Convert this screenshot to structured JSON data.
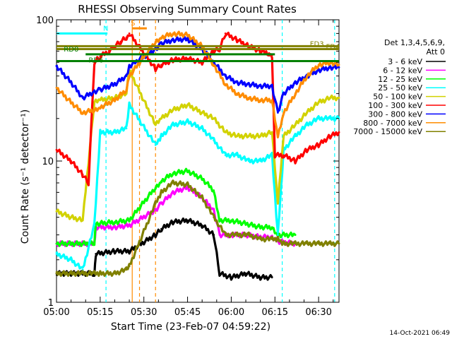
{
  "chart_data": {
    "type": "line",
    "title": "RHESSI Observing Summary Count Rates",
    "xlabel": "Start Time (23-Feb-07 04:59:22)",
    "ylabel": "Count Rate (s⁻¹ detector⁻¹)",
    "x_unit": "minutes after 05:00",
    "xlim": [
      0,
      97
    ],
    "ylim": [
      1,
      100
    ],
    "yscale": "log",
    "x_ticks": [
      {
        "value": 0,
        "label": "05:00"
      },
      {
        "value": 15,
        "label": "05:15"
      },
      {
        "value": 30,
        "label": "05:30"
      },
      {
        "value": 45,
        "label": "05:45"
      },
      {
        "value": 60,
        "label": "06:00"
      },
      {
        "value": 75,
        "label": "06:15"
      },
      {
        "value": 90,
        "label": "06:30"
      }
    ],
    "y_ticks": [
      {
        "value": 1,
        "label": "1"
      },
      {
        "value": 10,
        "label": "10"
      },
      {
        "value": 100,
        "label": "100"
      }
    ],
    "legend_header": [
      "Det 1,3,4,5,6,9,",
      "Att 0"
    ],
    "legend_position": "right",
    "footer_date": "14-Oct-2021 06:49",
    "series": [
      {
        "name": "3 - 6 keV",
        "color": "#000000",
        "x": [
          0,
          13,
          13.5,
          20,
          25,
          34,
          36,
          40,
          45,
          50,
          54,
          56,
          60,
          65,
          70,
          74
        ],
        "y": [
          1.6,
          1.6,
          2.2,
          2.3,
          2.3,
          3.0,
          3.3,
          3.7,
          3.8,
          3.5,
          3.0,
          1.6,
          1.5,
          1.6,
          1.5,
          1.5
        ]
      },
      {
        "name": "6 - 12 keV",
        "color": "#ff00ff",
        "x": [
          0,
          13,
          13.5,
          20,
          25,
          34,
          36,
          40,
          45,
          50,
          54,
          56,
          60,
          65,
          70,
          74,
          76,
          82
        ],
        "y": [
          2.6,
          2.6,
          3.4,
          3.4,
          3.5,
          4.5,
          5.0,
          6.0,
          6.5,
          5.5,
          4.5,
          3.0,
          3.0,
          3.0,
          2.9,
          2.9,
          2.7,
          2.6
        ]
      },
      {
        "name": "12 - 25 keV",
        "color": "#00ff00",
        "x": [
          0,
          13,
          13.5,
          20,
          25,
          34,
          36,
          40,
          45,
          50,
          54,
          56,
          60,
          65,
          70,
          74,
          76,
          82
        ],
        "y": [
          2.6,
          2.6,
          3.6,
          3.7,
          3.8,
          6.5,
          7.2,
          8.2,
          8.5,
          7.5,
          6.2,
          3.8,
          3.8,
          3.6,
          3.4,
          3.4,
          3.0,
          3.0
        ]
      },
      {
        "name": "25 - 50 keV",
        "color": "#00ffff",
        "x": [
          0,
          5,
          9,
          13,
          15,
          20,
          24,
          25,
          34,
          36,
          40,
          45,
          50,
          54,
          58,
          62,
          66,
          70,
          74,
          76,
          78,
          82,
          86,
          90,
          94,
          97
        ],
        "y": [
          2.2,
          2.0,
          1.7,
          3.5,
          16,
          16,
          17,
          25,
          13,
          15,
          18,
          19,
          17,
          14,
          11,
          11,
          10,
          10,
          11,
          3.0,
          12,
          15,
          18,
          20,
          20,
          20
        ]
      },
      {
        "name": "50 - 100 keV",
        "color": "#d2d200",
        "x": [
          0,
          5,
          9,
          13,
          15,
          20,
          24,
          25,
          34,
          36,
          40,
          45,
          50,
          54,
          58,
          62,
          66,
          70,
          74,
          76,
          78,
          82,
          86,
          90,
          94,
          97
        ],
        "y": [
          4.4,
          4.0,
          3.8,
          26,
          27,
          28,
          30,
          44,
          18,
          20,
          23,
          25,
          22,
          20,
          16,
          15,
          15,
          15,
          16,
          5.0,
          15,
          18,
          22,
          26,
          28,
          28
        ]
      },
      {
        "name": "100 - 300 keV",
        "color": "#ff0000",
        "x": [
          0,
          5,
          9,
          11,
          13,
          15,
          18,
          20,
          22,
          24,
          25,
          34,
          36,
          40,
          45,
          50,
          54,
          56,
          58,
          62,
          66,
          70,
          73,
          74,
          75,
          78,
          82,
          86,
          90,
          94,
          97
        ],
        "y": [
          12,
          10,
          8,
          7,
          50,
          55,
          60,
          65,
          70,
          75,
          80,
          45,
          48,
          52,
          53,
          50,
          60,
          62,
          80,
          72,
          65,
          60,
          58,
          56,
          11,
          11,
          10,
          12,
          13,
          15,
          16
        ]
      },
      {
        "name": "300 - 800 keV",
        "color": "#0000ff",
        "x": [
          0,
          5,
          9,
          13,
          15,
          20,
          24,
          25,
          34,
          36,
          40,
          45,
          50,
          54,
          58,
          62,
          66,
          70,
          74,
          76,
          78,
          82,
          86,
          90,
          94,
          97
        ],
        "y": [
          47,
          36,
          28,
          31,
          32,
          35,
          40,
          47,
          62,
          68,
          72,
          73,
          62,
          50,
          40,
          36,
          35,
          34,
          34,
          22,
          30,
          36,
          40,
          44,
          46,
          46
        ]
      },
      {
        "name": "800 - 7000 keV",
        "color": "#ff8c00",
        "x": [
          0,
          5,
          9,
          13,
          15,
          20,
          24,
          25,
          34,
          36,
          40,
          45,
          50,
          54,
          58,
          62,
          66,
          70,
          74,
          76,
          78,
          82,
          86,
          90,
          94,
          97
        ],
        "y": [
          33,
          26,
          22,
          23,
          24,
          27,
          32,
          40,
          70,
          75,
          80,
          78,
          65,
          48,
          35,
          30,
          28,
          27,
          27,
          15,
          22,
          30,
          40,
          48,
          50,
          48
        ]
      },
      {
        "name": "7000 - 15000 keV",
        "color": "#808000",
        "x": [
          0,
          5,
          9,
          13,
          15,
          20,
          24,
          25,
          34,
          36,
          40,
          45,
          50,
          54,
          58,
          62,
          66,
          70,
          74,
          76,
          78,
          82,
          86,
          90,
          94,
          97
        ],
        "y": [
          1.6,
          1.6,
          1.6,
          1.6,
          1.6,
          1.6,
          1.7,
          1.8,
          5.0,
          6.0,
          7.0,
          6.8,
          5.5,
          4.0,
          3.0,
          3.0,
          3.0,
          2.8,
          2.8,
          2.8,
          2.6,
          2.6,
          2.6,
          2.6,
          2.6,
          2.6
        ]
      }
    ],
    "annotations": {
      "flag_bars": [
        {
          "label": "N",
          "color": "#00ffff",
          "x_start": 0,
          "x_end": 17.5,
          "y": 80
        },
        {
          "label": "S",
          "color": "#ff8c00",
          "x_start": 26,
          "x_end": 31,
          "y": 87
        },
        {
          "label": "FD3",
          "color": "#808000",
          "x_start": 0,
          "x_end": 97,
          "y": 62
        },
        {
          "label": "FD4",
          "color": "#808000",
          "x_start": 0,
          "x_end": 97,
          "y": 65
        },
        {
          "label": "RD0",
          "color": "#008000",
          "x_start": 10,
          "x_end": 75,
          "y": 57
        },
        {
          "label": "RD6",
          "color": "#008000",
          "x_start": 0,
          "x_end": 97,
          "y": 51
        }
      ],
      "vertical_markers": [
        {
          "x": 28.5,
          "color": "#ff8c00",
          "style": "dashed"
        },
        {
          "x": 26.0,
          "color": "#ff8c00",
          "style": "solid"
        },
        {
          "x": 34.0,
          "color": "#ff8c00",
          "style": "dashed"
        },
        {
          "x": 17.0,
          "color": "#00ffff",
          "style": "dashed"
        },
        {
          "x": 77.5,
          "color": "#00ffff",
          "style": "dashed"
        },
        {
          "x": 95.5,
          "color": "#00ffff",
          "style": "dashed"
        }
      ]
    },
    "grid": false
  }
}
